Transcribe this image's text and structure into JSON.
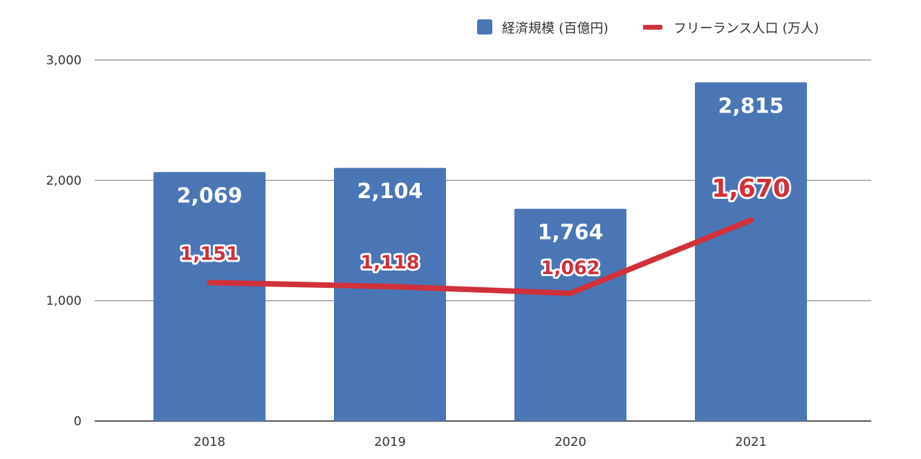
{
  "chart_data": {
    "type": "bar+line",
    "title": "",
    "xlabel": "",
    "ylabel": "",
    "ylim": [
      0,
      3000
    ],
    "yticks": [
      "0",
      "1,000",
      "2,000",
      "3,000"
    ],
    "categories": [
      "2018",
      "2019",
      "2020",
      "2021"
    ],
    "grid": true,
    "legend_position": "top-right",
    "series": [
      {
        "name": "経済規模 (百億円)",
        "type": "bar",
        "color": "#4a76b6",
        "values": [
          2069,
          2104,
          1764,
          2815
        ],
        "labels": [
          "2,069",
          "2,104",
          "1,764",
          "2,815"
        ]
      },
      {
        "name": "フリーランス人口 (万人)",
        "type": "line",
        "color": "#d0313a",
        "values": [
          1151,
          1118,
          1062,
          1670
        ],
        "labels": [
          "1,151",
          "1,118",
          "1,062",
          "1,670"
        ]
      }
    ]
  }
}
